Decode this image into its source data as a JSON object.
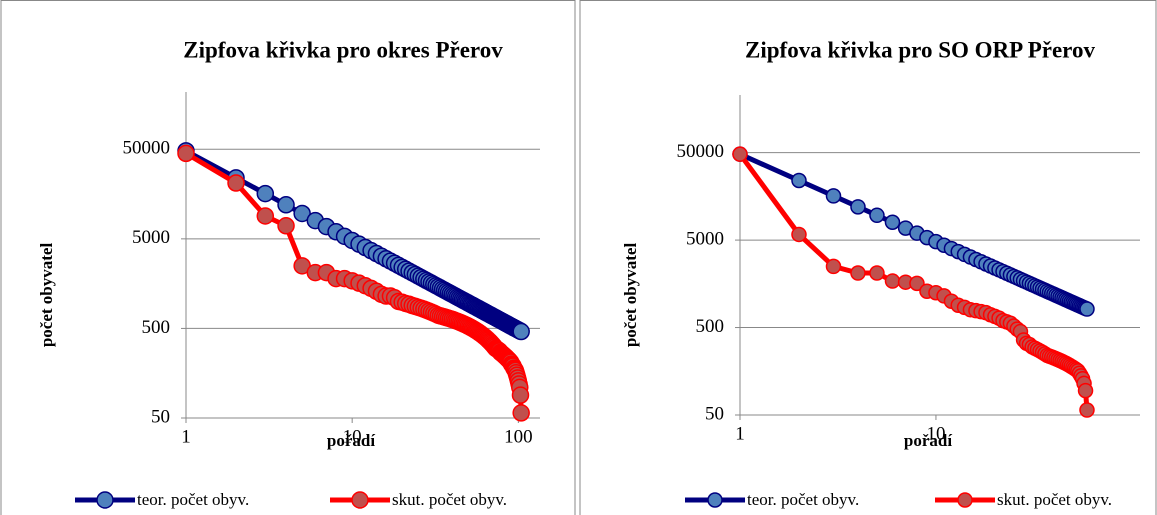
{
  "chart_data": [
    {
      "type": "line",
      "title": "Zipfova křivka pro okres Přerov",
      "xlabel": "pořadí",
      "ylabel": "počet obyvatel",
      "x": [
        1,
        2,
        3,
        4,
        5,
        6,
        7,
        8,
        9,
        10,
        11,
        12,
        13,
        14,
        15,
        16,
        17,
        18,
        19,
        20,
        21,
        22,
        23,
        24,
        25,
        26,
        27,
        28,
        29,
        30,
        31,
        32,
        33,
        34,
        35,
        36,
        37,
        38,
        39,
        40,
        41,
        42,
        43,
        44,
        45,
        46,
        47,
        48,
        49,
        50,
        51,
        52,
        53,
        54,
        55,
        56,
        57,
        58,
        59,
        60,
        61,
        62,
        63,
        64,
        65,
        66,
        67,
        68,
        69,
        70,
        71,
        72,
        73,
        74,
        75,
        76,
        77,
        78,
        79,
        80,
        81,
        82,
        83,
        84,
        85,
        86,
        87,
        88,
        89,
        90,
        91,
        92,
        93,
        94,
        95,
        96,
        97,
        98,
        99,
        100,
        101,
        102,
        103,
        104
      ],
      "series": [
        {
          "name": "teor. počet obyv.",
          "color": "#000080",
          "marker_color": "#4f81bd",
          "values": [
            48000,
            24000,
            16000,
            12000,
            9600,
            8000,
            6857,
            6000,
            5333,
            4800,
            4364,
            4000,
            3692,
            3429,
            3200,
            3000,
            2824,
            2667,
            2526,
            2400,
            2286,
            2182,
            2087,
            2000,
            1920,
            1846,
            1778,
            1714,
            1655,
            1600,
            1548,
            1500,
            1455,
            1412,
            1371,
            1333,
            1297,
            1263,
            1231,
            1200,
            1171,
            1143,
            1116,
            1091,
            1067,
            1043,
            1021,
            1000,
            980,
            960,
            941,
            923,
            906,
            889,
            873,
            857,
            842,
            828,
            814,
            800,
            787,
            774,
            762,
            750,
            738,
            727,
            716,
            706,
            696,
            686,
            676,
            667,
            658,
            649,
            640,
            632,
            623,
            615,
            608,
            600,
            593,
            585,
            578,
            571,
            565,
            558,
            552,
            545,
            539,
            533,
            527,
            522,
            516,
            511,
            505,
            500,
            495,
            490,
            485,
            480,
            475,
            471,
            466,
            462
          ]
        },
        {
          "name": "skut. počet obyv.",
          "color": "#ff0000",
          "marker_color": "#c0504d",
          "values": [
            45000,
            21000,
            9000,
            7000,
            2500,
            2100,
            2100,
            1800,
            1800,
            1700,
            1600,
            1500,
            1400,
            1300,
            1200,
            1150,
            1150,
            1100,
            1000,
            980,
            950,
            930,
            900,
            880,
            860,
            840,
            820,
            800,
            780,
            760,
            740,
            720,
            700,
            690,
            680,
            670,
            660,
            650,
            640,
            630,
            620,
            610,
            600,
            590,
            580,
            570,
            560,
            550,
            540,
            530,
            520,
            510,
            500,
            490,
            480,
            470,
            460,
            450,
            440,
            430,
            420,
            410,
            400,
            390,
            380,
            370,
            360,
            350,
            340,
            330,
            320,
            310,
            300,
            295,
            290,
            285,
            280,
            270,
            265,
            260,
            255,
            250,
            245,
            240,
            235,
            230,
            225,
            220,
            215,
            210,
            200,
            195,
            190,
            180,
            175,
            170,
            160,
            150,
            140,
            130,
            120,
            110,
            90,
            57
          ]
        }
      ],
      "xlim": [
        1,
        135
      ],
      "ylim": [
        50,
        218000
      ],
      "xticks": [
        1,
        10,
        100
      ],
      "yticks": [
        50,
        500,
        5000,
        50000
      ],
      "xscale": "log",
      "yscale": "log",
      "grid": true,
      "legend": "bottom"
    },
    {
      "type": "line",
      "title": "Zipfova křivka pro SO ORP Přerov",
      "xlabel": "pořadí",
      "ylabel": "počet obyvatel",
      "x": [
        1,
        2,
        3,
        4,
        5,
        6,
        7,
        8,
        9,
        10,
        11,
        12,
        13,
        14,
        15,
        16,
        17,
        18,
        19,
        20,
        21,
        22,
        23,
        24,
        25,
        26,
        27,
        28,
        29,
        30,
        31,
        32,
        33,
        34,
        35,
        36,
        37,
        38,
        39,
        40,
        41,
        42,
        43,
        44,
        45,
        46,
        47,
        48,
        49,
        50,
        51,
        52,
        53,
        54,
        55,
        56,
        57,
        58,
        59
      ],
      "series": [
        {
          "name": "teor. počet obyv.",
          "color": "#000080",
          "marker_color": "#4f81bd",
          "values": [
            48000,
            24000,
            16000,
            12000,
            9600,
            8000,
            6857,
            6000,
            5333,
            4800,
            4364,
            4000,
            3692,
            3429,
            3200,
            3000,
            2824,
            2667,
            2526,
            2400,
            2286,
            2182,
            2087,
            2000,
            1920,
            1846,
            1778,
            1714,
            1655,
            1600,
            1548,
            1500,
            1455,
            1412,
            1371,
            1333,
            1297,
            1263,
            1231,
            1200,
            1171,
            1143,
            1116,
            1091,
            1067,
            1043,
            1021,
            1000,
            980,
            960,
            941,
            923,
            906,
            889,
            873,
            857,
            842,
            828,
            814
          ]
        },
        {
          "name": "skut. počet obyv.",
          "color": "#ff0000",
          "marker_color": "#c0504d",
          "values": [
            48000,
            5800,
            2500,
            2100,
            2100,
            1700,
            1650,
            1600,
            1300,
            1250,
            1150,
            1000,
            900,
            850,
            800,
            780,
            760,
            740,
            700,
            670,
            640,
            600,
            580,
            560,
            520,
            480,
            450,
            360,
            330,
            320,
            300,
            290,
            280,
            270,
            260,
            250,
            240,
            235,
            230,
            225,
            220,
            215,
            210,
            205,
            200,
            195,
            190,
            185,
            180,
            175,
            170,
            165,
            160,
            150,
            140,
            130,
            115,
            95,
            57
          ]
        }
      ],
      "xlim": [
        1,
        110
      ],
      "ylim": [
        50,
        228000
      ],
      "xticks": [
        1,
        10
      ],
      "yticks": [
        50,
        500,
        5000,
        50000
      ],
      "xscale": "log",
      "yscale": "log",
      "grid": true,
      "legend": "bottom"
    }
  ]
}
